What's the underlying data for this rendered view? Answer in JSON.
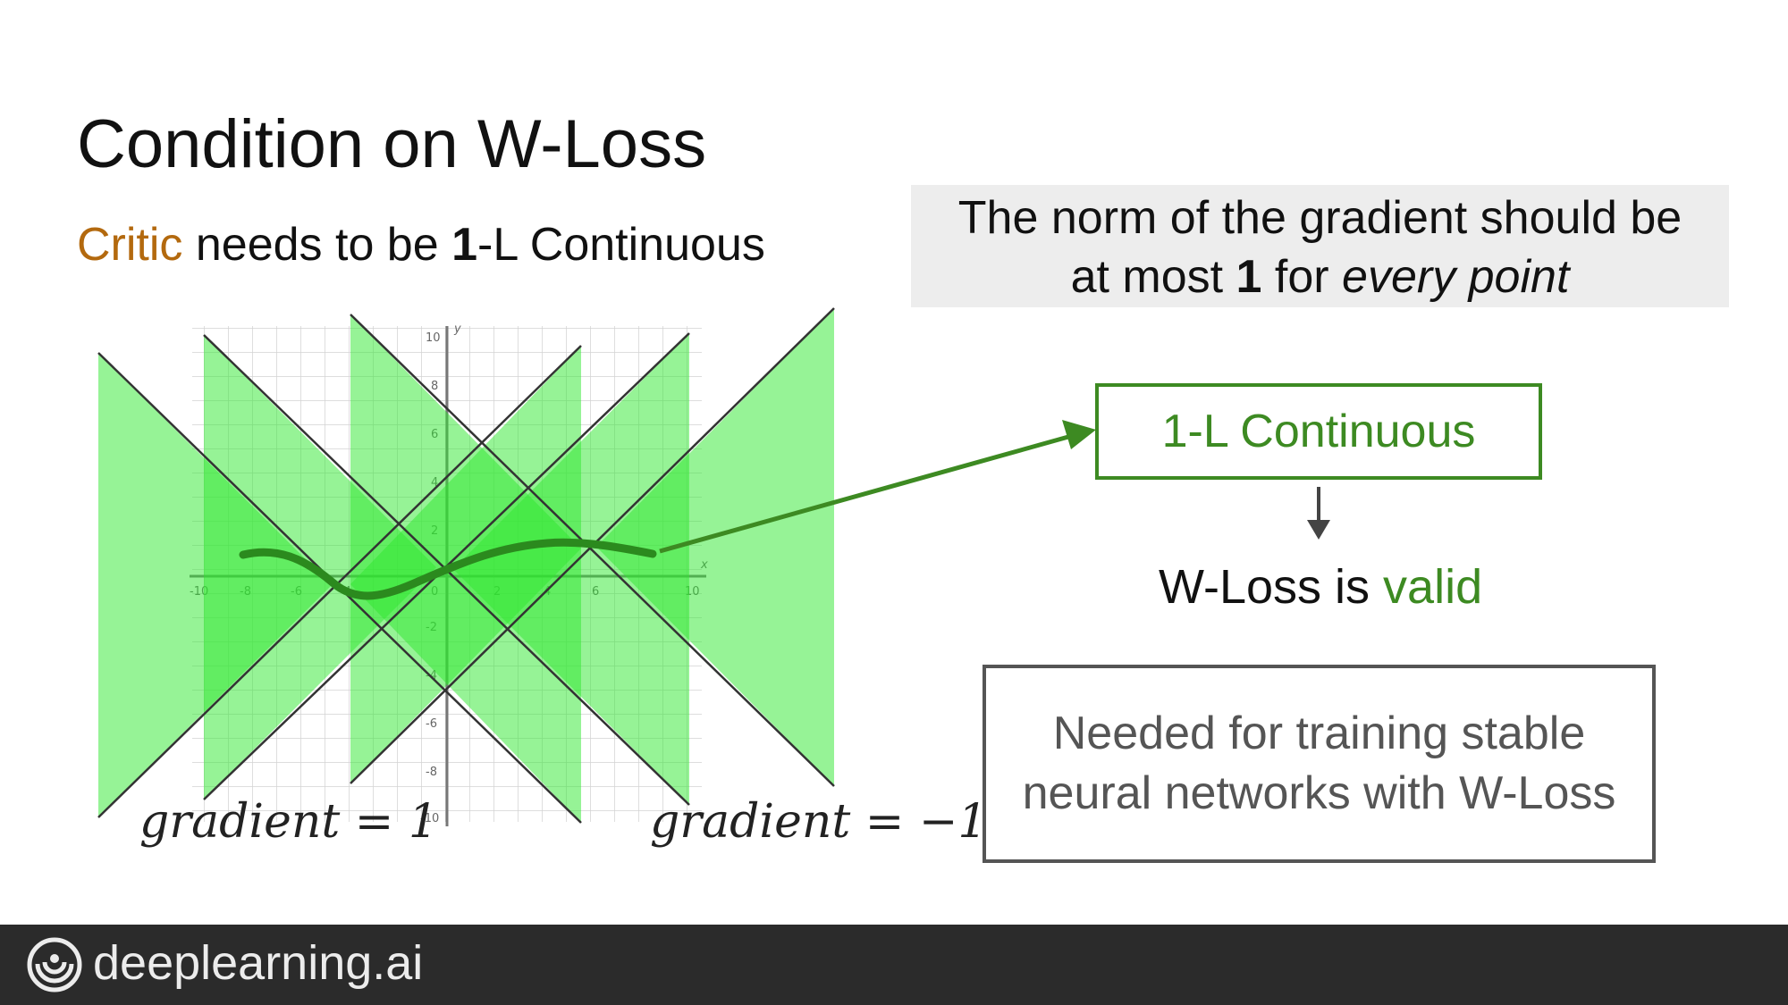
{
  "slide": {
    "title": "Condition on W-Loss",
    "subtitle": {
      "critic": "Critic",
      "rest_a": " needs to be ",
      "bold": "1",
      "rest_b": "-L Continuous"
    },
    "note": {
      "line1": "The norm of the gradient should be",
      "line2_a": "at most ",
      "line2_bold": "1",
      "line2_b": " for ",
      "line2_italic": "every point"
    },
    "l_box": "1-L Continuous",
    "result": {
      "prefix": "W-Loss is ",
      "valid": "valid"
    },
    "stable_box": {
      "line1": "Needed for training stable",
      "line2": "neural networks with W-Loss"
    },
    "grad_left": "gradient = 1",
    "grad_right": "gradient = −1",
    "footer": {
      "brand": "deeplearning.ai"
    }
  },
  "axes": {
    "x_ticks": [
      "-10",
      "-8",
      "-6",
      "-4",
      "2",
      "4",
      "6",
      "10"
    ],
    "y_ticks": [
      "10",
      "8",
      "6",
      "4",
      "2",
      "-2",
      "-4",
      "-6",
      "-8",
      "-10"
    ],
    "x_label": "x",
    "y_label": "y",
    "origin_label": "0"
  },
  "colors": {
    "green": "#3d8a22",
    "critic": "#b3690e",
    "cone_fill": "#2ee82e",
    "curve": "#2b8a1e"
  }
}
